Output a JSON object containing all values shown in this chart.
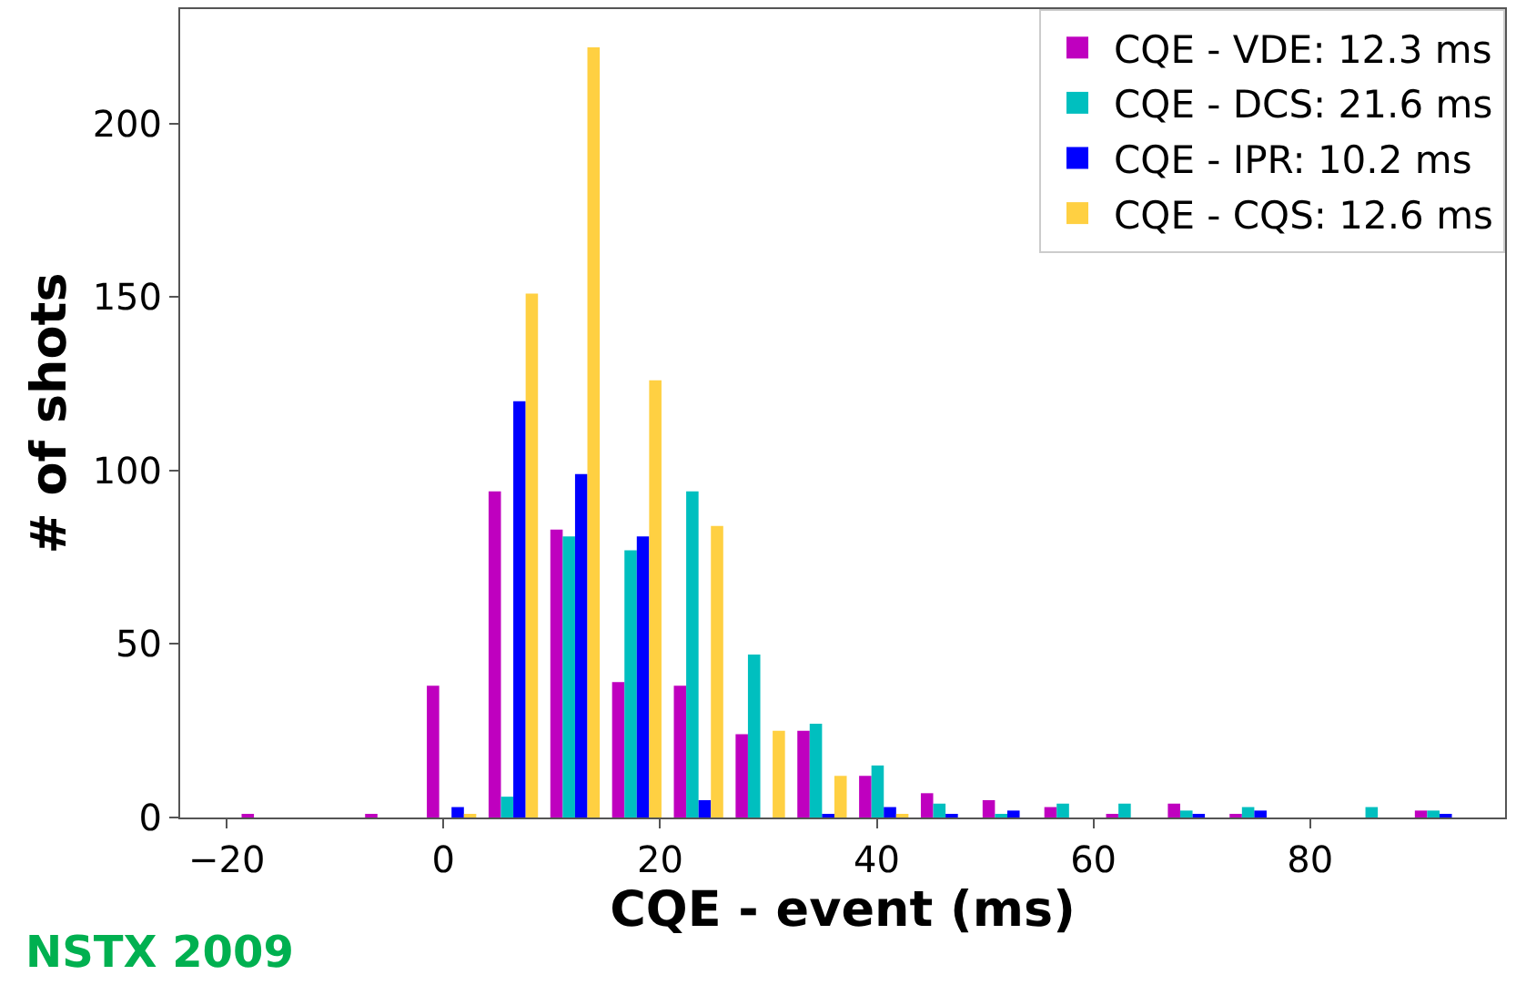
{
  "chart_data": {
    "type": "histogram",
    "xlabel": "CQE - event (ms)",
    "ylabel": "# of shots",
    "annotations": [
      "NSTX 2009"
    ],
    "bins": [
      -19.2,
      -13.5,
      -7.8,
      -2.1,
      3.6,
      9.3,
      15.0,
      20.7,
      26.4,
      32.1,
      37.8,
      43.5,
      49.2,
      54.9,
      60.6,
      66.3,
      72.0,
      77.7,
      83.4,
      89.1,
      94.8
    ],
    "series": [
      {
        "name": "CQE - VDE: 12.3 ms",
        "color": "#bf00bf",
        "values": [
          1,
          0,
          1,
          38,
          94,
          83,
          39,
          38,
          24,
          25,
          12,
          7,
          5,
          3,
          1,
          4,
          1,
          0,
          0,
          2
        ]
      },
      {
        "name": "CQE - DCS: 21.6 ms",
        "color": "#00bfbf",
        "values": [
          0,
          0,
          0,
          0,
          6,
          81,
          77,
          94,
          47,
          27,
          15,
          4,
          1,
          4,
          4,
          2,
          3,
          0,
          3,
          2
        ]
      },
      {
        "name": "CQE - IPR: 10.2 ms",
        "color": "#0000ff",
        "values": [
          0,
          0,
          0,
          3,
          120,
          99,
          81,
          5,
          0,
          1,
          3,
          1,
          2,
          0,
          0,
          1,
          2,
          0,
          0,
          1
        ]
      },
      {
        "name": "CQE - CQS: 12.6 ms",
        "color": "#ffd042",
        "values": [
          0,
          0,
          0,
          1,
          151,
          222,
          126,
          84,
          25,
          12,
          1,
          0,
          0,
          0,
          0,
          0,
          0,
          0,
          0,
          0
        ]
      }
    ],
    "xlim": [
      -24.3,
      98
    ],
    "xticks": [
      -20,
      0,
      20,
      40,
      60,
      80
    ],
    "ylim": [
      0,
      233
    ],
    "yticks": [
      0,
      50,
      100,
      150,
      200
    ],
    "grid": false,
    "legend": "top right"
  }
}
